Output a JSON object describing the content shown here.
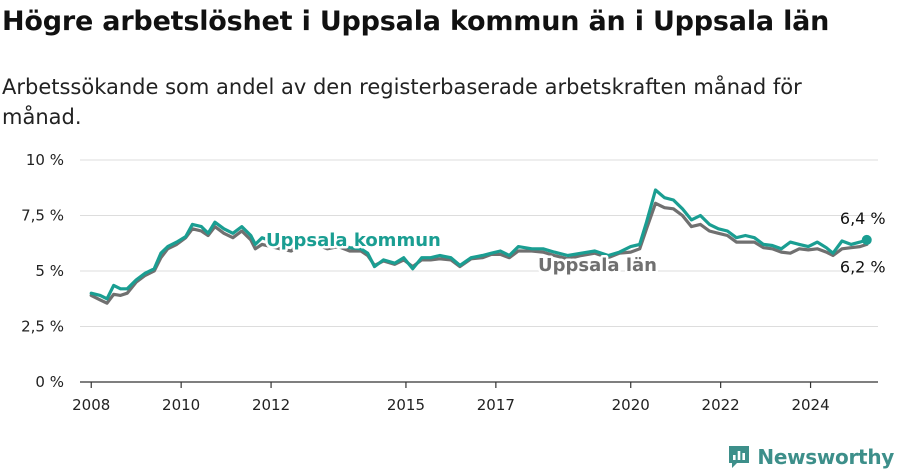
{
  "title": "Högre arbetslöshet i Uppsala kommun än i Uppsala län",
  "subtitle": "Arbetssökande som andel av den registerbaserade arbetskraften månad för månad.",
  "brand": {
    "name": "Newsworthy"
  },
  "colors": {
    "kommun": "#1a9e92",
    "lan": "#707070",
    "grid": "#dddddd",
    "axis": "#333333"
  },
  "chart_data": {
    "type": "line",
    "title": "",
    "xlabel": "",
    "ylabel": "",
    "xlim": [
      2007.75,
      2025.5
    ],
    "ylim": [
      0,
      10
    ],
    "y_ticks": [
      0,
      2.5,
      5,
      7.5,
      10
    ],
    "y_tick_labels": [
      "0 %",
      "2,5 %",
      "5 %",
      "7,5 %",
      "10 %"
    ],
    "x_ticks": [
      2008,
      2010,
      2012,
      2015,
      2017,
      2020,
      2022,
      2024
    ],
    "x_tick_labels": [
      "2008",
      "2010",
      "2012",
      "2015",
      "2017",
      "2020",
      "2022",
      "2024"
    ],
    "grid": true,
    "series": [
      {
        "name": "Uppsala län",
        "end_label": "6,2 %",
        "points": [
          [
            2008.0,
            3.9
          ],
          [
            2008.2,
            3.7
          ],
          [
            2008.35,
            3.55
          ],
          [
            2008.5,
            3.95
          ],
          [
            2008.65,
            3.9
          ],
          [
            2008.8,
            4.0
          ],
          [
            2009.0,
            4.5
          ],
          [
            2009.2,
            4.8
          ],
          [
            2009.4,
            5.0
          ],
          [
            2009.55,
            5.6
          ],
          [
            2009.7,
            6.0
          ],
          [
            2009.9,
            6.2
          ],
          [
            2010.1,
            6.5
          ],
          [
            2010.25,
            6.9
          ],
          [
            2010.45,
            6.8
          ],
          [
            2010.6,
            6.6
          ],
          [
            2010.75,
            7.0
          ],
          [
            2010.95,
            6.7
          ],
          [
            2011.15,
            6.5
          ],
          [
            2011.35,
            6.8
          ],
          [
            2011.55,
            6.4
          ],
          [
            2011.65,
            6.0
          ],
          [
            2011.8,
            6.2
          ],
          [
            2012.0,
            6.1
          ],
          [
            2012.2,
            6.0
          ],
          [
            2012.45,
            5.9
          ],
          [
            2012.7,
            6.3
          ],
          [
            2013.0,
            6.2
          ],
          [
            2013.25,
            6.0
          ],
          [
            2013.5,
            6.1
          ],
          [
            2013.75,
            5.9
          ],
          [
            2014.0,
            5.9
          ],
          [
            2014.15,
            5.7
          ],
          [
            2014.3,
            5.25
          ],
          [
            2014.5,
            5.45
          ],
          [
            2014.75,
            5.3
          ],
          [
            2014.95,
            5.5
          ],
          [
            2015.15,
            5.2
          ],
          [
            2015.35,
            5.5
          ],
          [
            2015.55,
            5.5
          ],
          [
            2015.75,
            5.55
          ],
          [
            2016.0,
            5.5
          ],
          [
            2016.2,
            5.2
          ],
          [
            2016.45,
            5.55
          ],
          [
            2016.7,
            5.6
          ],
          [
            2016.9,
            5.75
          ],
          [
            2017.1,
            5.75
          ],
          [
            2017.3,
            5.6
          ],
          [
            2017.5,
            5.9
          ],
          [
            2017.8,
            5.9
          ],
          [
            2018.05,
            5.85
          ],
          [
            2018.3,
            5.7
          ],
          [
            2018.6,
            5.55
          ],
          [
            2018.9,
            5.7
          ],
          [
            2019.2,
            5.8
          ],
          [
            2019.5,
            5.6
          ],
          [
            2019.75,
            5.8
          ],
          [
            2020.0,
            5.85
          ],
          [
            2020.2,
            6.0
          ],
          [
            2020.35,
            6.9
          ],
          [
            2020.55,
            8.05
          ],
          [
            2020.75,
            7.85
          ],
          [
            2020.95,
            7.8
          ],
          [
            2021.15,
            7.5
          ],
          [
            2021.35,
            7.0
          ],
          [
            2021.55,
            7.1
          ],
          [
            2021.75,
            6.8
          ],
          [
            2021.95,
            6.7
          ],
          [
            2022.15,
            6.6
          ],
          [
            2022.35,
            6.3
          ],
          [
            2022.55,
            6.3
          ],
          [
            2022.75,
            6.3
          ],
          [
            2022.95,
            6.05
          ],
          [
            2023.15,
            6.0
          ],
          [
            2023.35,
            5.85
          ],
          [
            2023.55,
            5.8
          ],
          [
            2023.75,
            6.0
          ],
          [
            2023.95,
            5.95
          ],
          [
            2024.15,
            6.0
          ],
          [
            2024.35,
            5.85
          ],
          [
            2024.5,
            5.7
          ],
          [
            2024.7,
            6.0
          ],
          [
            2024.9,
            6.05
          ],
          [
            2025.1,
            6.1
          ],
          [
            2025.25,
            6.2
          ]
        ]
      },
      {
        "name": "Uppsala kommun",
        "end_label": "6,4 %",
        "points": [
          [
            2008.0,
            4.0
          ],
          [
            2008.2,
            3.9
          ],
          [
            2008.35,
            3.75
          ],
          [
            2008.5,
            4.35
          ],
          [
            2008.65,
            4.2
          ],
          [
            2008.8,
            4.2
          ],
          [
            2009.0,
            4.6
          ],
          [
            2009.2,
            4.9
          ],
          [
            2009.4,
            5.1
          ],
          [
            2009.55,
            5.8
          ],
          [
            2009.7,
            6.1
          ],
          [
            2009.9,
            6.3
          ],
          [
            2010.1,
            6.55
          ],
          [
            2010.25,
            7.1
          ],
          [
            2010.45,
            7.0
          ],
          [
            2010.6,
            6.7
          ],
          [
            2010.75,
            7.2
          ],
          [
            2010.95,
            6.9
          ],
          [
            2011.15,
            6.7
          ],
          [
            2011.35,
            7.0
          ],
          [
            2011.55,
            6.6
          ],
          [
            2011.65,
            6.2
          ],
          [
            2011.8,
            6.5
          ],
          [
            2012.0,
            6.35
          ],
          [
            2012.2,
            6.2
          ],
          [
            2012.45,
            6.1
          ],
          [
            2012.7,
            6.5
          ],
          [
            2013.0,
            6.4
          ],
          [
            2013.25,
            6.2
          ],
          [
            2013.5,
            6.25
          ],
          [
            2013.75,
            6.05
          ],
          [
            2014.0,
            6.0
          ],
          [
            2014.15,
            5.8
          ],
          [
            2014.3,
            5.2
          ],
          [
            2014.5,
            5.5
          ],
          [
            2014.75,
            5.35
          ],
          [
            2014.95,
            5.6
          ],
          [
            2015.15,
            5.1
          ],
          [
            2015.35,
            5.6
          ],
          [
            2015.55,
            5.6
          ],
          [
            2015.75,
            5.7
          ],
          [
            2016.0,
            5.6
          ],
          [
            2016.2,
            5.25
          ],
          [
            2016.45,
            5.6
          ],
          [
            2016.7,
            5.7
          ],
          [
            2016.9,
            5.8
          ],
          [
            2017.1,
            5.9
          ],
          [
            2017.3,
            5.7
          ],
          [
            2017.5,
            6.1
          ],
          [
            2017.8,
            6.0
          ],
          [
            2018.05,
            6.0
          ],
          [
            2018.3,
            5.85
          ],
          [
            2018.6,
            5.7
          ],
          [
            2018.9,
            5.8
          ],
          [
            2019.2,
            5.9
          ],
          [
            2019.5,
            5.7
          ],
          [
            2019.75,
            5.85
          ],
          [
            2020.0,
            6.1
          ],
          [
            2020.2,
            6.2
          ],
          [
            2020.35,
            7.2
          ],
          [
            2020.55,
            8.65
          ],
          [
            2020.75,
            8.3
          ],
          [
            2020.95,
            8.2
          ],
          [
            2021.15,
            7.8
          ],
          [
            2021.35,
            7.3
          ],
          [
            2021.55,
            7.5
          ],
          [
            2021.75,
            7.1
          ],
          [
            2021.95,
            6.9
          ],
          [
            2022.15,
            6.8
          ],
          [
            2022.35,
            6.5
          ],
          [
            2022.55,
            6.6
          ],
          [
            2022.75,
            6.5
          ],
          [
            2022.95,
            6.2
          ],
          [
            2023.15,
            6.15
          ],
          [
            2023.35,
            6.0
          ],
          [
            2023.55,
            6.3
          ],
          [
            2023.75,
            6.2
          ],
          [
            2023.95,
            6.1
          ],
          [
            2024.15,
            6.3
          ],
          [
            2024.35,
            6.05
          ],
          [
            2024.5,
            5.8
          ],
          [
            2024.7,
            6.35
          ],
          [
            2024.9,
            6.2
          ],
          [
            2025.1,
            6.3
          ],
          [
            2025.25,
            6.4
          ]
        ]
      }
    ]
  }
}
